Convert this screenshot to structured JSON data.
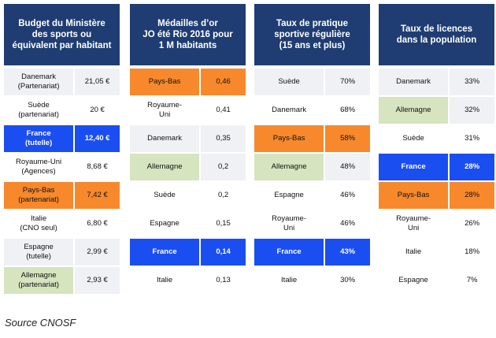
{
  "panels": [
    {
      "title": "Budget du Ministère\ndes sports  ou\néquivalent par habitant",
      "rows": [
        {
          "name": "Danemark\n(Partenariat)",
          "value": "21,05 €",
          "style": "grey"
        },
        {
          "name": "Suède\n(partenariat)",
          "value": "20 €",
          "style": "white"
        },
        {
          "name": "France\n(tutelle)",
          "value": "12,40 €",
          "style": "blue"
        },
        {
          "name": "Royaume-Uni\n(Agences)",
          "value": "8,68 €",
          "style": "white"
        },
        {
          "name": "Pays-Bas\n(partenariat)",
          "value": "7,42 €",
          "style": "orange"
        },
        {
          "name": "Italie\n(CNO seul)",
          "value": "6,80 €",
          "style": "white"
        },
        {
          "name": "Espagne\n(tutelle)",
          "value": "2,99 €",
          "style": "grey"
        },
        {
          "name": "Allemagne\n(partenariat)",
          "value": "2,93 €",
          "style": "green"
        }
      ]
    },
    {
      "title": "Médailles d’or\nJO été Rio 2016 pour\n1 M habitants",
      "rows": [
        {
          "name": "Pays-Bas",
          "value": "0,46",
          "style": "orange"
        },
        {
          "name": "Royaume-\nUni",
          "value": "0,41",
          "style": "white"
        },
        {
          "name": "Danemark",
          "value": "0,35",
          "style": "grey"
        },
        {
          "name": "Allemagne",
          "value": "0,2",
          "style": "green"
        },
        {
          "name": "Suède",
          "value": "0,2",
          "style": "white"
        },
        {
          "name": "Espagne",
          "value": "0,15",
          "style": "white"
        },
        {
          "name": "France",
          "value": "0,14",
          "style": "blue"
        },
        {
          "name": "Italie",
          "value": "0,13",
          "style": "white"
        }
      ]
    },
    {
      "title": "Taux de pratique\nsportive régulière\n(15 ans et plus)",
      "rows": [
        {
          "name": "Suède",
          "value": "70%",
          "style": "grey"
        },
        {
          "name": "Danemark",
          "value": "68%",
          "style": "white"
        },
        {
          "name": "Pays-Bas",
          "value": "58%",
          "style": "orange"
        },
        {
          "name": "Allemagne",
          "value": "48%",
          "style": "green"
        },
        {
          "name": "Espagne",
          "value": "46%",
          "style": "white"
        },
        {
          "name": "Royaume-\nUni",
          "value": "46%",
          "style": "white"
        },
        {
          "name": "France",
          "value": "43%",
          "style": "blue"
        },
        {
          "name": "Italie",
          "value": "30%",
          "style": "white"
        }
      ]
    },
    {
      "title": "Taux de licences\ndans la population",
      "rows": [
        {
          "name": "Danemark",
          "value": "33%",
          "style": "grey"
        },
        {
          "name": "Allemagne",
          "value": "32%",
          "style": "green"
        },
        {
          "name": "Suède",
          "value": "31%",
          "style": "white"
        },
        {
          "name": "France",
          "value": "28%",
          "style": "blue"
        },
        {
          "name": "Pays-Bas",
          "value": "28%",
          "style": "orange"
        },
        {
          "name": "Royaume-\nUni",
          "value": "26%",
          "style": "white"
        },
        {
          "name": "Italie",
          "value": "18%",
          "style": "white"
        },
        {
          "name": "Espagne",
          "value": "7%",
          "style": "white"
        }
      ]
    }
  ],
  "colors": {
    "header": "#1f3d72",
    "france": "#1a4ef0",
    "pays_bas": "#f7892c",
    "allemagne": "#d6e4bf",
    "row_grey": "#f0f1f5"
  },
  "source": "Source CNOSF"
}
